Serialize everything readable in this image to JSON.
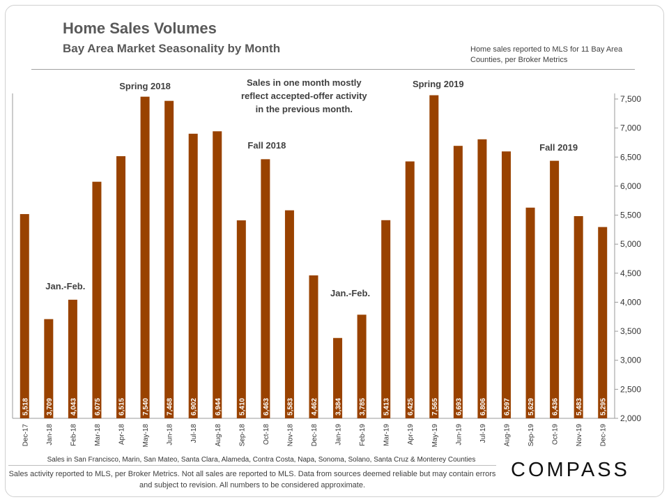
{
  "header": {
    "title": "Home Sales Volumes",
    "subtitle": "Bay Area Market Seasonality  by Month",
    "source_note": "Home sales reported to MLS for 11 Bay Area Counties, per Broker Metrics"
  },
  "chart_data": {
    "type": "bar",
    "categories": [
      "Dec-17",
      "Jan-18",
      "Feb-18",
      "Mar-18",
      "Apr-18",
      "May-18",
      "Jun-18",
      "Jul-18",
      "Aug-18",
      "Sep-18",
      "Oct-18",
      "Nov-18",
      "Dec-18",
      "Jan-19",
      "Feb-19",
      "Mar-19",
      "Apr-19",
      "May-19",
      "Jun-19",
      "Jul-19",
      "Aug-19",
      "Sep-19",
      "Oct-19",
      "Nov-19",
      "Dec-19"
    ],
    "values": [
      5518,
      3709,
      4043,
      6075,
      6515,
      7540,
      7468,
      6902,
      6944,
      5410,
      6463,
      5583,
      4462,
      3384,
      3785,
      5413,
      6425,
      7565,
      6693,
      6806,
      6597,
      5629,
      6436,
      5483,
      5295
    ],
    "data_labels": [
      "5,518",
      "3,709",
      "4,043",
      "6,075",
      "6,515",
      "7,540",
      "7,468",
      "6,902",
      "6,944",
      "5,410",
      "6,463",
      "5,583",
      "4,462",
      "3,384",
      "3,785",
      "5,413",
      "6,425",
      "7,565",
      "6,693",
      "6,806",
      "6,597",
      "5,629",
      "6,436",
      "5,483",
      "5,295"
    ],
    "yaxis_position": "right",
    "ylim": [
      2000,
      7500
    ],
    "yticks": [
      2000,
      2500,
      3000,
      3500,
      4000,
      4500,
      5000,
      5500,
      6000,
      6500,
      7000,
      7500
    ],
    "ytick_labels": [
      "2,000",
      "2,500",
      "3,000",
      "3,500",
      "4,000",
      "4,500",
      "5,000",
      "5,500",
      "6,000",
      "6,500",
      "7,000",
      "7,500"
    ],
    "bar_color": "#994200",
    "xlabel": "Sales in San Francisco, Marin, San Mateo, Santa Clara, Alameda, Contra Costa, Napa, Sonoma, Solano, Santa Cruz & Monterey Counties",
    "annotations": [
      {
        "text": "Spring 2018",
        "near": "May-18"
      },
      {
        "text": "Sales in one month mostly reflect accepted-offer activity in the previous month.",
        "near": "Sep-18"
      },
      {
        "text": "Fall 2018",
        "near": "Oct-18"
      },
      {
        "text": "Jan.-Feb.",
        "near": "Jan-18"
      },
      {
        "text": "Jan.-Feb.",
        "near": "Jan-19"
      },
      {
        "text": "Spring 2019",
        "near": "May-19"
      },
      {
        "text": "Fall 2019",
        "near": "Oct-19"
      }
    ]
  },
  "footer": {
    "note": "Sales activity reported to MLS, per Broker Metrics. Not all sales are reported to MLS. Data from sources deemed reliable but may contain errors and subject to revision. All numbers to be considered approximate.",
    "logo": "COMPASS"
  }
}
